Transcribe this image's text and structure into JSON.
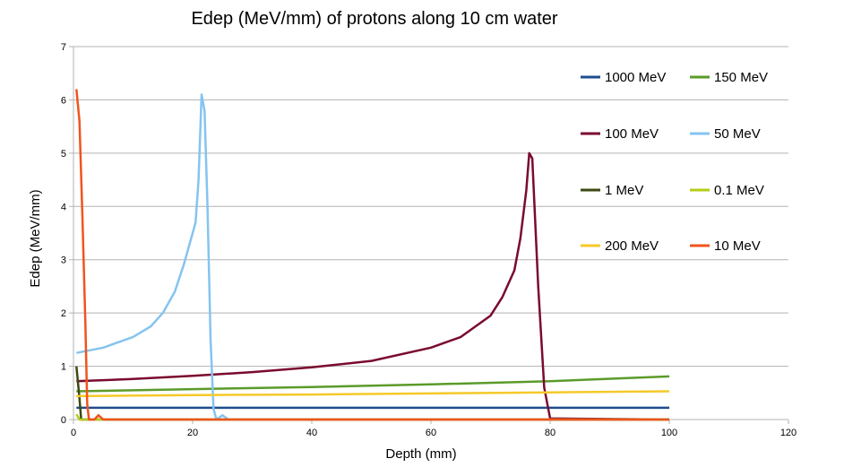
{
  "chart_data": {
    "type": "line",
    "title": "Edep (MeV/mm) of protons along 10 cm water",
    "xlabel": "Depth (mm)",
    "ylabel": "Edep (MeV/mm)",
    "xlim": [
      0,
      120
    ],
    "ylim": [
      0,
      7
    ],
    "xticks": [
      0,
      20,
      40,
      60,
      80,
      100,
      120
    ],
    "yticks": [
      0,
      1,
      2,
      3,
      4,
      5,
      6,
      7
    ],
    "grid": true,
    "legend_position": "right",
    "series": [
      {
        "name": "1000 MeV",
        "color": "#1f4e8c",
        "points": [
          [
            0.5,
            0.22
          ],
          [
            20,
            0.22
          ],
          [
            40,
            0.22
          ],
          [
            60,
            0.22
          ],
          [
            80,
            0.22
          ],
          [
            100,
            0.22
          ]
        ]
      },
      {
        "name": "150 MeV",
        "color": "#5b9b2a",
        "points": [
          [
            0.5,
            0.53
          ],
          [
            20,
            0.57
          ],
          [
            40,
            0.61
          ],
          [
            60,
            0.66
          ],
          [
            80,
            0.72
          ],
          [
            100,
            0.81
          ]
        ]
      },
      {
        "name": "100 MeV",
        "color": "#7a0a2e",
        "points": [
          [
            0.5,
            0.72
          ],
          [
            10,
            0.76
          ],
          [
            20,
            0.82
          ],
          [
            30,
            0.89
          ],
          [
            40,
            0.98
          ],
          [
            50,
            1.1
          ],
          [
            60,
            1.35
          ],
          [
            65,
            1.55
          ],
          [
            70,
            1.95
          ],
          [
            72,
            2.3
          ],
          [
            74,
            2.8
          ],
          [
            75,
            3.4
          ],
          [
            76,
            4.3
          ],
          [
            76.5,
            5.0
          ],
          [
            77,
            4.9
          ],
          [
            78,
            2.5
          ],
          [
            79,
            0.6
          ],
          [
            80,
            0.02
          ],
          [
            100,
            0.0
          ]
        ]
      },
      {
        "name": "50 MeV",
        "color": "#85c4f0",
        "points": [
          [
            0.5,
            1.25
          ],
          [
            5,
            1.35
          ],
          [
            10,
            1.55
          ],
          [
            13,
            1.75
          ],
          [
            15,
            2.0
          ],
          [
            17,
            2.4
          ],
          [
            18.5,
            2.9
          ],
          [
            19.5,
            3.3
          ],
          [
            20.5,
            3.7
          ],
          [
            21,
            4.5
          ],
          [
            21.5,
            6.1
          ],
          [
            22,
            5.8
          ],
          [
            22.5,
            4.0
          ],
          [
            23,
            1.5
          ],
          [
            23.5,
            0.2
          ],
          [
            24,
            0.0
          ],
          [
            25,
            0.08
          ],
          [
            26,
            0.0
          ],
          [
            100,
            0.0
          ]
        ]
      },
      {
        "name": "1 MeV",
        "color": "#3d4a12",
        "points": [
          [
            0.5,
            1.0
          ],
          [
            1,
            0.4
          ],
          [
            1.3,
            0.0
          ],
          [
            100,
            0.0
          ]
        ]
      },
      {
        "name": "0.1 MeV",
        "color": "#b5cc1a",
        "points": [
          [
            0.5,
            0.1
          ],
          [
            1,
            0.0
          ],
          [
            100,
            0.0
          ]
        ]
      },
      {
        "name": "200 MeV",
        "color": "#f5c929",
        "points": [
          [
            0.5,
            0.44
          ],
          [
            20,
            0.46
          ],
          [
            40,
            0.47
          ],
          [
            60,
            0.49
          ],
          [
            80,
            0.51
          ],
          [
            100,
            0.53
          ]
        ]
      },
      {
        "name": "10 MeV",
        "color": "#f0541e",
        "points": [
          [
            0.5,
            6.2
          ],
          [
            1,
            5.6
          ],
          [
            1.5,
            3.8
          ],
          [
            2,
            1.8
          ],
          [
            2.3,
            0.3
          ],
          [
            2.6,
            0.0
          ],
          [
            3.5,
            0.0
          ],
          [
            4.2,
            0.08
          ],
          [
            5,
            0.0
          ],
          [
            100,
            0.0
          ]
        ]
      }
    ]
  }
}
